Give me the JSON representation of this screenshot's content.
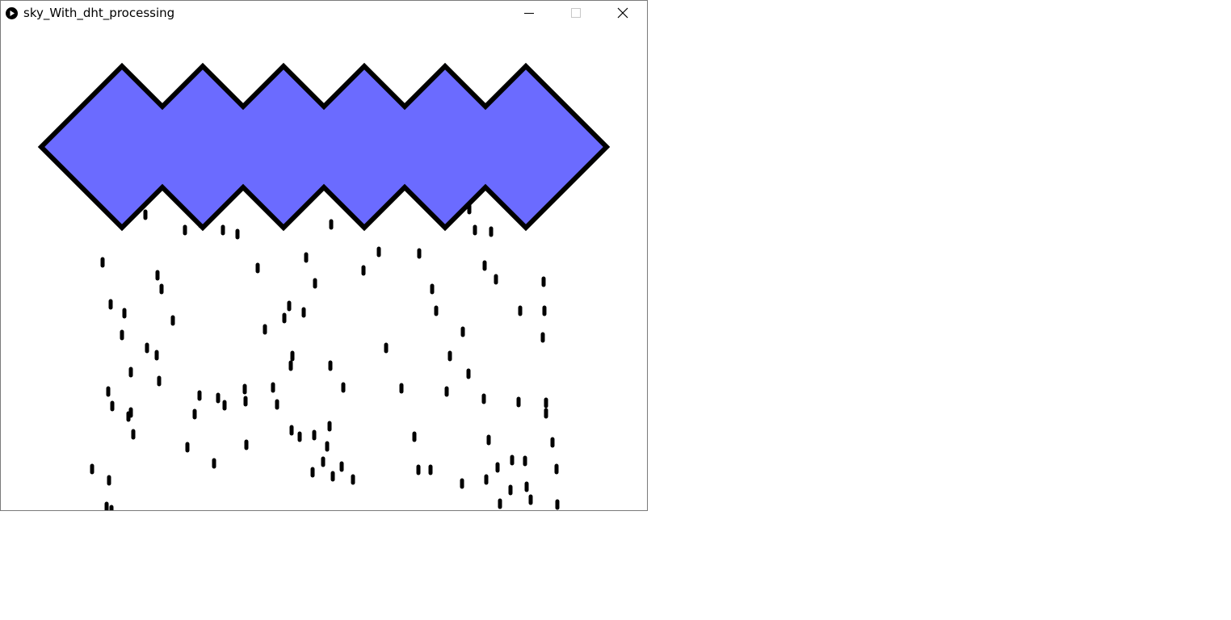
{
  "window": {
    "title": "sky_With_dht_processing",
    "icons": {
      "app": "processing-play-icon",
      "minimize": "minimize-icon",
      "maximize": "maximize-icon",
      "close": "close-icon"
    }
  },
  "sketch": {
    "cloud_fill": "#6b6bff",
    "cloud_stroke": "#000000",
    "raindrop_color": "#000000",
    "background": "#ffffff"
  }
}
